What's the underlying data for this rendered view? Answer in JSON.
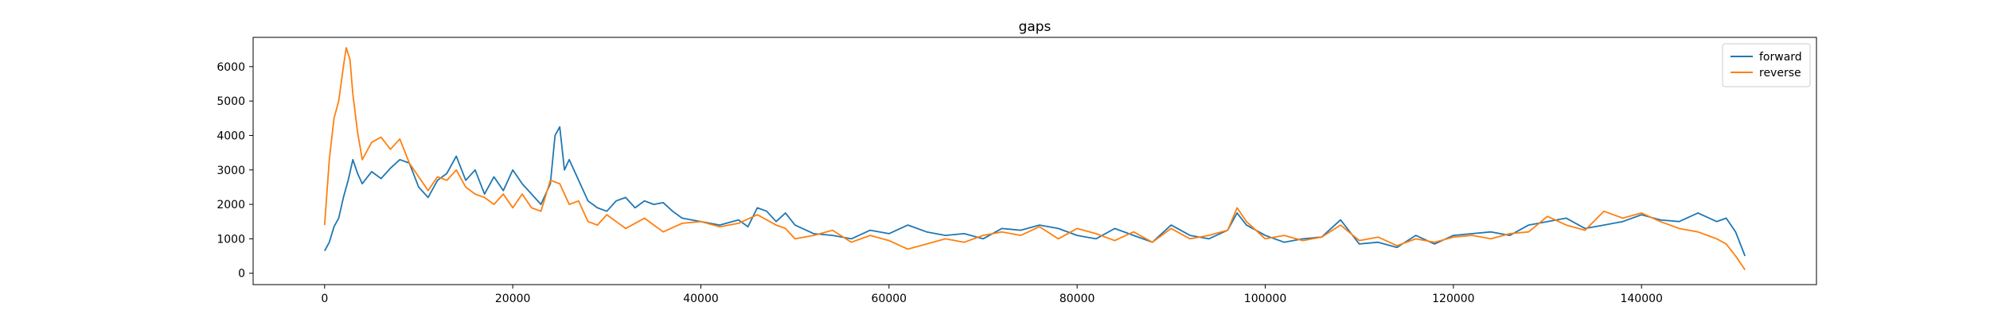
{
  "chart_data": {
    "type": "line",
    "title": "gaps",
    "xlabel": "",
    "ylabel": "",
    "xlim": [
      -7600,
      158600
    ],
    "ylim": [
      -330,
      6850
    ],
    "x_ticks": [
      0,
      20000,
      40000,
      60000,
      80000,
      100000,
      120000,
      140000
    ],
    "y_ticks": [
      0,
      1000,
      2000,
      3000,
      4000,
      5000,
      6000
    ],
    "grid": false,
    "legend": {
      "placement": "upper-right"
    },
    "series": [
      {
        "name": "forward",
        "color": "#1f77b4",
        "points": [
          [
            0,
            650
          ],
          [
            500,
            900
          ],
          [
            1000,
            1350
          ],
          [
            1500,
            1600
          ],
          [
            2000,
            2200
          ],
          [
            2500,
            2700
          ],
          [
            3000,
            3300
          ],
          [
            3500,
            2900
          ],
          [
            4000,
            2600
          ],
          [
            5000,
            2950
          ],
          [
            6000,
            2750
          ],
          [
            7000,
            3050
          ],
          [
            8000,
            3300
          ],
          [
            9000,
            3200
          ],
          [
            10000,
            2500
          ],
          [
            11000,
            2200
          ],
          [
            12000,
            2700
          ],
          [
            13000,
            2900
          ],
          [
            14000,
            3400
          ],
          [
            15000,
            2700
          ],
          [
            16000,
            3000
          ],
          [
            17000,
            2300
          ],
          [
            18000,
            2800
          ],
          [
            19000,
            2400
          ],
          [
            20000,
            3000
          ],
          [
            21000,
            2600
          ],
          [
            22000,
            2300
          ],
          [
            23000,
            2000
          ],
          [
            24000,
            2600
          ],
          [
            24500,
            4000
          ],
          [
            25000,
            4250
          ],
          [
            25500,
            3000
          ],
          [
            26000,
            3300
          ],
          [
            27000,
            2700
          ],
          [
            28000,
            2100
          ],
          [
            29000,
            1900
          ],
          [
            30000,
            1800
          ],
          [
            31000,
            2100
          ],
          [
            32000,
            2200
          ],
          [
            33000,
            1900
          ],
          [
            34000,
            2100
          ],
          [
            35000,
            2000
          ],
          [
            36000,
            2050
          ],
          [
            37000,
            1800
          ],
          [
            38000,
            1600
          ],
          [
            40000,
            1500
          ],
          [
            42000,
            1400
          ],
          [
            44000,
            1550
          ],
          [
            45000,
            1350
          ],
          [
            46000,
            1900
          ],
          [
            47000,
            1800
          ],
          [
            48000,
            1500
          ],
          [
            49000,
            1750
          ],
          [
            50000,
            1400
          ],
          [
            52000,
            1150
          ],
          [
            54000,
            1100
          ],
          [
            56000,
            1000
          ],
          [
            58000,
            1250
          ],
          [
            60000,
            1150
          ],
          [
            62000,
            1400
          ],
          [
            64000,
            1200
          ],
          [
            66000,
            1100
          ],
          [
            68000,
            1150
          ],
          [
            70000,
            1000
          ],
          [
            72000,
            1300
          ],
          [
            74000,
            1250
          ],
          [
            76000,
            1400
          ],
          [
            78000,
            1300
          ],
          [
            80000,
            1100
          ],
          [
            82000,
            1000
          ],
          [
            84000,
            1300
          ],
          [
            86000,
            1100
          ],
          [
            88000,
            900
          ],
          [
            90000,
            1400
          ],
          [
            92000,
            1100
          ],
          [
            94000,
            1000
          ],
          [
            96000,
            1250
          ],
          [
            97000,
            1750
          ],
          [
            98000,
            1400
          ],
          [
            100000,
            1100
          ],
          [
            102000,
            900
          ],
          [
            104000,
            1000
          ],
          [
            106000,
            1050
          ],
          [
            108000,
            1550
          ],
          [
            110000,
            850
          ],
          [
            112000,
            900
          ],
          [
            114000,
            750
          ],
          [
            116000,
            1100
          ],
          [
            118000,
            850
          ],
          [
            120000,
            1100
          ],
          [
            122000,
            1150
          ],
          [
            124000,
            1200
          ],
          [
            126000,
            1100
          ],
          [
            128000,
            1400
          ],
          [
            130000,
            1500
          ],
          [
            132000,
            1600
          ],
          [
            134000,
            1300
          ],
          [
            136000,
            1400
          ],
          [
            138000,
            1500
          ],
          [
            140000,
            1700
          ],
          [
            142000,
            1550
          ],
          [
            144000,
            1500
          ],
          [
            146000,
            1750
          ],
          [
            148000,
            1500
          ],
          [
            149000,
            1600
          ],
          [
            150000,
            1200
          ],
          [
            151000,
            500
          ]
        ]
      },
      {
        "name": "reverse",
        "color": "#ff7f0e",
        "points": [
          [
            0,
            1400
          ],
          [
            500,
            3300
          ],
          [
            1000,
            4500
          ],
          [
            1500,
            5000
          ],
          [
            2000,
            6000
          ],
          [
            2300,
            6550
          ],
          [
            2700,
            6200
          ],
          [
            3000,
            5200
          ],
          [
            3500,
            4100
          ],
          [
            4000,
            3300
          ],
          [
            5000,
            3800
          ],
          [
            6000,
            3950
          ],
          [
            7000,
            3600
          ],
          [
            8000,
            3900
          ],
          [
            9000,
            3200
          ],
          [
            10000,
            2800
          ],
          [
            11000,
            2400
          ],
          [
            12000,
            2800
          ],
          [
            13000,
            2700
          ],
          [
            14000,
            3000
          ],
          [
            15000,
            2500
          ],
          [
            16000,
            2300
          ],
          [
            17000,
            2200
          ],
          [
            18000,
            2000
          ],
          [
            19000,
            2300
          ],
          [
            20000,
            1900
          ],
          [
            21000,
            2300
          ],
          [
            22000,
            1900
          ],
          [
            23000,
            1800
          ],
          [
            24000,
            2700
          ],
          [
            25000,
            2600
          ],
          [
            26000,
            2000
          ],
          [
            27000,
            2100
          ],
          [
            28000,
            1500
          ],
          [
            29000,
            1400
          ],
          [
            30000,
            1700
          ],
          [
            31000,
            1500
          ],
          [
            32000,
            1300
          ],
          [
            34000,
            1600
          ],
          [
            35000,
            1400
          ],
          [
            36000,
            1200
          ],
          [
            38000,
            1450
          ],
          [
            40000,
            1500
          ],
          [
            42000,
            1350
          ],
          [
            44000,
            1450
          ],
          [
            46000,
            1700
          ],
          [
            48000,
            1400
          ],
          [
            49000,
            1300
          ],
          [
            50000,
            1000
          ],
          [
            52000,
            1100
          ],
          [
            54000,
            1250
          ],
          [
            56000,
            900
          ],
          [
            58000,
            1100
          ],
          [
            60000,
            950
          ],
          [
            62000,
            700
          ],
          [
            64000,
            850
          ],
          [
            66000,
            1000
          ],
          [
            68000,
            900
          ],
          [
            70000,
            1100
          ],
          [
            72000,
            1200
          ],
          [
            74000,
            1100
          ],
          [
            76000,
            1350
          ],
          [
            78000,
            1000
          ],
          [
            80000,
            1300
          ],
          [
            82000,
            1150
          ],
          [
            84000,
            950
          ],
          [
            86000,
            1200
          ],
          [
            88000,
            900
          ],
          [
            90000,
            1300
          ],
          [
            92000,
            1000
          ],
          [
            94000,
            1100
          ],
          [
            96000,
            1250
          ],
          [
            97000,
            1900
          ],
          [
            98000,
            1500
          ],
          [
            100000,
            1000
          ],
          [
            102000,
            1100
          ],
          [
            104000,
            950
          ],
          [
            106000,
            1050
          ],
          [
            108000,
            1400
          ],
          [
            110000,
            950
          ],
          [
            112000,
            1050
          ],
          [
            114000,
            800
          ],
          [
            116000,
            1000
          ],
          [
            118000,
            900
          ],
          [
            120000,
            1050
          ],
          [
            122000,
            1100
          ],
          [
            124000,
            1000
          ],
          [
            126000,
            1150
          ],
          [
            128000,
            1200
          ],
          [
            130000,
            1650
          ],
          [
            132000,
            1400
          ],
          [
            134000,
            1250
          ],
          [
            136000,
            1800
          ],
          [
            138000,
            1600
          ],
          [
            140000,
            1750
          ],
          [
            142000,
            1500
          ],
          [
            144000,
            1300
          ],
          [
            146000,
            1200
          ],
          [
            148000,
            1000
          ],
          [
            149000,
            850
          ],
          [
            150000,
            500
          ],
          [
            151000,
            100
          ]
        ]
      }
    ]
  }
}
